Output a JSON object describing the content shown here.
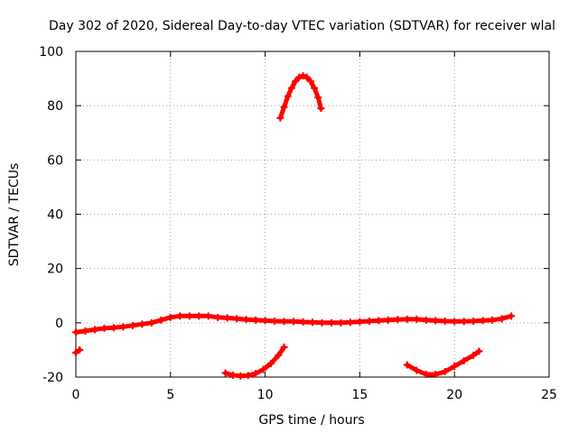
{
  "chart_data": {
    "type": "line",
    "title": "Day 302 of 2020, Sidereal Day-to-day VTEC variation (SDTVAR) for receiver wlal",
    "xlabel": "GPS time / hours",
    "ylabel": "SDTVAR / TECUs",
    "xlim": [
      0,
      25
    ],
    "ylim": [
      -20,
      100
    ],
    "xticks": [
      0,
      5,
      10,
      15,
      20,
      25
    ],
    "yticks": [
      -20,
      0,
      20,
      40,
      60,
      80,
      100
    ],
    "grid": true,
    "marker": "plus",
    "color": "#ff0000",
    "segments": [
      {
        "x": [
          0.0,
          0.5,
          1.0,
          1.5,
          2.0,
          2.5,
          3.0,
          3.5,
          4.0,
          4.5,
          5.0,
          5.5,
          6.0,
          6.5,
          7.0,
          7.5,
          8.0,
          8.5,
          9.0,
          9.5,
          10.0,
          10.5,
          11.0,
          11.5,
          12.0,
          12.5,
          13.0,
          13.5,
          14.0,
          14.5,
          15.0,
          15.5,
          16.0,
          16.5,
          17.0,
          17.5,
          18.0,
          18.5,
          19.0,
          19.5,
          20.0,
          20.5,
          21.0,
          21.5,
          22.0,
          22.5,
          23.0
        ],
        "y": [
          -3.5,
          -3.0,
          -2.5,
          -2.0,
          -1.8,
          -1.5,
          -1.0,
          -0.5,
          0.0,
          1.0,
          2.0,
          2.5,
          2.5,
          2.5,
          2.5,
          2.0,
          1.8,
          1.5,
          1.2,
          1.0,
          0.8,
          0.6,
          0.5,
          0.5,
          0.3,
          0.2,
          0.0,
          0.0,
          0.0,
          0.2,
          0.4,
          0.6,
          0.8,
          1.0,
          1.2,
          1.3,
          1.3,
          1.0,
          0.8,
          0.6,
          0.5,
          0.5,
          0.6,
          0.8,
          1.0,
          1.5,
          2.5
        ]
      },
      {
        "x": [
          0.0,
          0.2
        ],
        "y": [
          -11,
          -10
        ]
      },
      {
        "x": [
          10.8,
          11.0,
          11.2,
          11.4,
          11.6,
          11.8,
          12.0,
          12.2,
          12.4,
          12.6,
          12.8,
          12.95
        ],
        "y": [
          75.5,
          79.5,
          83.5,
          86.5,
          89.0,
          90.5,
          91.0,
          90.5,
          89.0,
          86.5,
          83.0,
          79.0
        ]
      },
      {
        "x": [
          7.9,
          8.3,
          8.7,
          9.1,
          9.5,
          9.9,
          10.3,
          10.7,
          11.0
        ],
        "y": [
          -18.5,
          -19.3,
          -19.6,
          -19.4,
          -18.7,
          -17.2,
          -15.0,
          -12.0,
          -9.0
        ]
      },
      {
        "x": [
          17.5,
          18.0,
          18.5,
          19.0,
          19.5,
          20.0,
          20.5,
          21.0,
          21.3
        ],
        "y": [
          -15.5,
          -17.5,
          -19.0,
          -19.0,
          -18.0,
          -16.0,
          -14.0,
          -12.0,
          -10.5
        ]
      }
    ]
  }
}
